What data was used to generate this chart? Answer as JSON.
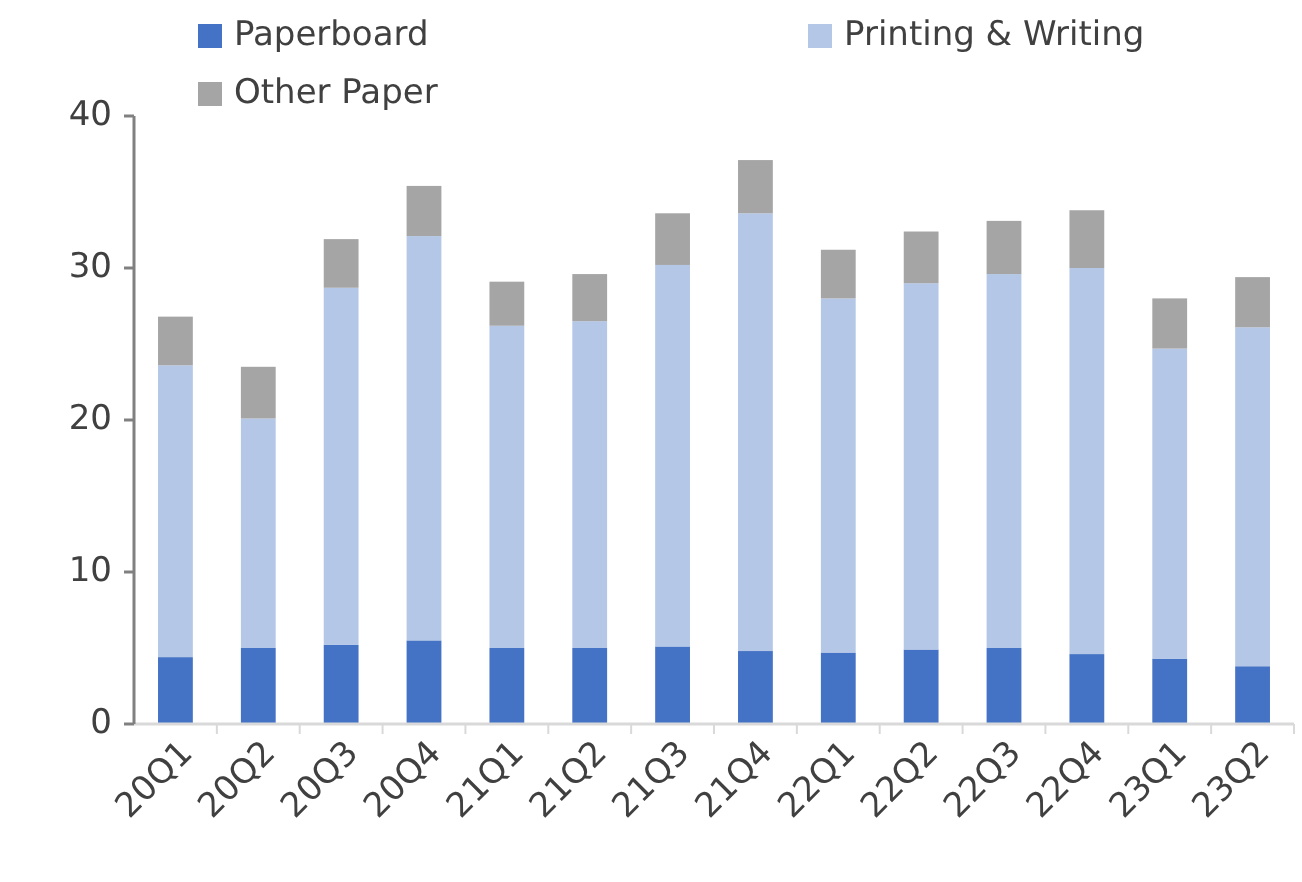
{
  "chart_data": {
    "type": "bar",
    "stacked": true,
    "legend": "top",
    "categories": [
      "20Q1",
      "20Q2",
      "20Q3",
      "20Q4",
      "21Q1",
      "21Q2",
      "21Q3",
      "21Q4",
      "22Q1",
      "22Q2",
      "22Q3",
      "22Q4",
      "23Q1",
      "23Q2"
    ],
    "series": [
      {
        "name": "Paperboard",
        "color": "#4472c4",
        "values": [
          4.4,
          5.0,
          5.2,
          5.5,
          5.0,
          5.0,
          5.1,
          4.8,
          4.7,
          4.9,
          5.0,
          4.6,
          4.3,
          3.8
        ]
      },
      {
        "name": "Printing & Writing",
        "color": "#b4c7e7",
        "values": [
          19.2,
          15.1,
          23.5,
          26.6,
          21.2,
          21.5,
          25.1,
          28.8,
          23.3,
          24.1,
          24.6,
          25.4,
          20.4,
          22.3
        ]
      },
      {
        "name": "Other Paper",
        "color": "#a5a5a5",
        "values": [
          3.2,
          3.4,
          3.2,
          3.3,
          2.9,
          3.1,
          3.4,
          3.5,
          3.2,
          3.4,
          3.5,
          3.8,
          3.3,
          3.3
        ]
      }
    ],
    "ylim": [
      0,
      40
    ],
    "yticks": [
      0,
      10,
      20,
      30,
      40
    ]
  }
}
